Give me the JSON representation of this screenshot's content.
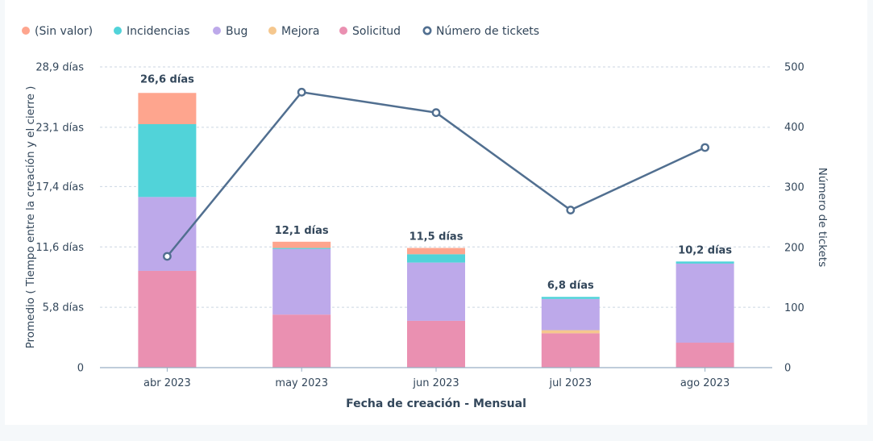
{
  "chart_data": {
    "type": "bar",
    "stacked": true,
    "categories": [
      "abr 2023",
      "may 2023",
      "jun 2023",
      "jul 2023",
      "ago 2023"
    ],
    "xlabel": "Fecha de creación - Mensual",
    "ylabel": "Promedio ( Tiempo entre la creación y el cierre )",
    "y2label": "Número de tickets",
    "ylim": [
      0,
      28.9
    ],
    "y2lim": [
      0,
      500
    ],
    "yticks": [
      0,
      5.8,
      11.6,
      17.4,
      23.1,
      28.9
    ],
    "ytick_labels": [
      "0",
      "5,8 días",
      "11,6 días",
      "17,4 días",
      "23,1 días",
      "28,9 días"
    ],
    "y2ticks": [
      0,
      100,
      200,
      300,
      400,
      500
    ],
    "y2tick_labels": [
      "0",
      "100",
      "200",
      "300",
      "400",
      "500"
    ],
    "grid": true,
    "legend_position": "top-left",
    "series": [
      {
        "name": "Solicitud",
        "color": "#ea90b1",
        "values": [
          9.3,
          5.1,
          4.5,
          3.3,
          2.4
        ]
      },
      {
        "name": "Mejora",
        "color": "#f5c78e",
        "values": [
          0,
          0,
          0,
          0.3,
          0
        ]
      },
      {
        "name": "Bug",
        "color": "#bda9ea",
        "values": [
          7.1,
          6.3,
          5.6,
          3.0,
          7.6
        ]
      },
      {
        "name": "Incidencias",
        "color": "#51d3d9",
        "values": [
          7.0,
          0.1,
          0.8,
          0.2,
          0.2
        ]
      },
      {
        "name": "(Sin valor)",
        "color": "#fea58e",
        "values": [
          3.0,
          0.6,
          0.6,
          0,
          0
        ]
      }
    ],
    "totals": [
      26.6,
      12.1,
      11.5,
      6.8,
      10.2
    ],
    "total_labels": [
      "26,6 días",
      "12,1 días",
      "11,5 días",
      "6,8 días",
      "10,2 días"
    ],
    "line_series": {
      "name": "Número de tickets",
      "color": "#516f90",
      "values": [
        185,
        458,
        424,
        262,
        366
      ]
    },
    "legend": [
      {
        "name": "(Sin valor)",
        "color": "#fea58e",
        "kind": "dot"
      },
      {
        "name": "Incidencias",
        "color": "#51d3d9",
        "kind": "dot"
      },
      {
        "name": "Bug",
        "color": "#bda9ea",
        "kind": "dot"
      },
      {
        "name": "Mejora",
        "color": "#f5c78e",
        "kind": "dot"
      },
      {
        "name": "Solicitud",
        "color": "#ea90b1",
        "kind": "dot"
      },
      {
        "name": "Número de tickets",
        "color": "#516f90",
        "kind": "ring"
      }
    ]
  }
}
